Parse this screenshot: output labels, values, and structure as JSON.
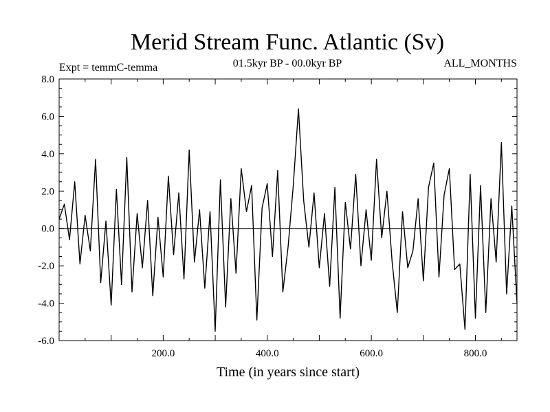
{
  "chart_data": {
    "type": "line",
    "title": "Merid Stream Func. Atlantic (Sv)",
    "subtitle_left": "Expt = temmC-temma",
    "subtitle_center": "01.5kyr BP - 00.0kyr BP",
    "subtitle_right": "ALL_MONTHS",
    "xlabel": "Time (in years since start)",
    "ylabel": "",
    "xlim": [
      0,
      880
    ],
    "ylim": [
      -6,
      8
    ],
    "x_ticks": [
      200,
      400,
      600,
      800
    ],
    "x_tick_labels": [
      "200.0",
      "400.0",
      "600.0",
      "800.0"
    ],
    "y_ticks": [
      -6,
      -4,
      -2,
      0,
      2,
      4,
      6,
      8
    ],
    "y_tick_labels": [
      "-6.0",
      "-4.0",
      "-2.0",
      "0.0",
      "2.0",
      "4.0",
      "6.0",
      "8.0"
    ],
    "zero_line": true,
    "grid": false,
    "legend": "none",
    "line_color": "#000000",
    "series": [
      {
        "x": [
          0,
          10,
          20,
          30,
          40,
          50,
          60,
          70,
          80,
          90,
          100,
          110,
          120,
          130,
          140,
          150,
          160,
          170,
          180,
          190,
          200,
          210,
          220,
          230,
          240,
          250,
          260,
          270,
          280,
          290,
          300,
          310,
          320,
          330,
          340,
          350,
          360,
          370,
          380,
          390,
          400,
          410,
          420,
          430,
          440,
          450,
          460,
          470,
          480,
          490,
          500,
          510,
          520,
          530,
          540,
          550,
          560,
          570,
          580,
          590,
          600,
          610,
          620,
          630,
          640,
          650,
          660,
          670,
          680,
          690,
          700,
          710,
          720,
          730,
          740,
          750,
          760,
          770,
          780,
          790,
          800,
          810,
          820,
          830,
          840,
          850,
          860,
          870,
          880
        ],
        "values": [
          0.5,
          1.3,
          -0.6,
          2.5,
          -1.9,
          0.7,
          -1.2,
          3.7,
          -2.9,
          0.4,
          -4.1,
          2.1,
          -3.0,
          3.8,
          -3.4,
          0.8,
          -2.1,
          1.5,
          -3.6,
          0.6,
          -2.6,
          2.8,
          -1.4,
          1.9,
          -2.7,
          4.2,
          -1.8,
          1.0,
          -3.2,
          0.9,
          -5.5,
          2.6,
          -4.2,
          1.6,
          -2.4,
          3.2,
          0.9,
          2.3,
          -4.9,
          1.1,
          2.4,
          -1.5,
          3.1,
          -3.4,
          -1.0,
          2.3,
          6.4,
          1.5,
          -1.0,
          1.9,
          -2.1,
          0.8,
          -3.1,
          2.2,
          -4.8,
          1.4,
          -1.1,
          2.9,
          -2.0,
          1.0,
          -1.7,
          3.7,
          -0.5,
          2.0,
          -1.8,
          -4.5,
          0.9,
          -2.1,
          -1.2,
          1.6,
          -2.8,
          2.2,
          3.5,
          -2.6,
          1.8,
          3.2,
          -2.2,
          -1.9,
          -5.4,
          2.9,
          -4.8,
          2.3,
          -4.5,
          1.6,
          -1.8,
          4.6,
          -3.5,
          1.2,
          -4.0
        ]
      }
    ]
  }
}
